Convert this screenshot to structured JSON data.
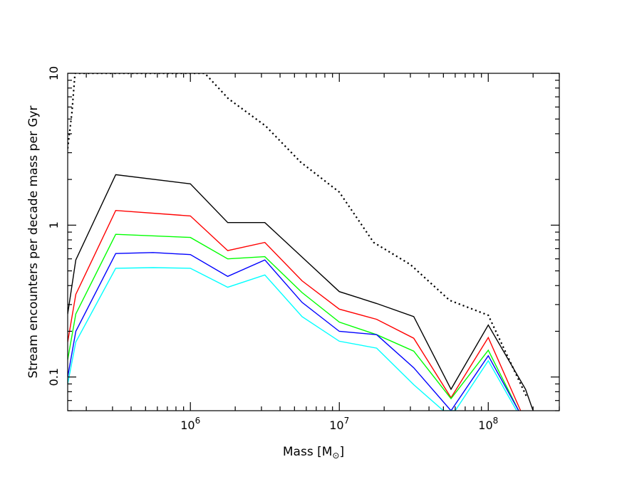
{
  "chart_data": {
    "type": "line",
    "xlabel": "Mass [M",
    "xlabel_sub": "⊙",
    "xlabel_close": "]",
    "ylabel": "Stream encounters per decade mass per Gyr",
    "x_scale": "log",
    "y_scale": "log",
    "xlim": [
      150000,
      300000000
    ],
    "ylim": [
      0.06,
      10
    ],
    "x_ticks": [
      {
        "value": 1000000,
        "base": "10",
        "exp": "6"
      },
      {
        "value": 10000000,
        "base": "10",
        "exp": "7"
      },
      {
        "value": 100000000,
        "base": "10",
        "exp": "8"
      }
    ],
    "y_ticks": [
      {
        "value": 0.1,
        "label": "0.1"
      },
      {
        "value": 1,
        "label": "1"
      },
      {
        "value": 10,
        "label": "10"
      }
    ],
    "grid": false,
    "legend": "none",
    "series": [
      {
        "color": "#000000",
        "style": "dotted",
        "x": [
          150000,
          160000,
          168000,
          1250000,
          1800000,
          3200000,
          5500000,
          10000000,
          17000000,
          30000000,
          55000000,
          100000000,
          180000000
        ],
        "y": [
          3.2,
          5.5,
          10,
          10,
          6.8,
          4.5,
          2.6,
          1.65,
          0.77,
          0.55,
          0.32,
          0.255,
          0.075
        ]
      },
      {
        "color": "#000000",
        "style": "solid",
        "x": [
          150000,
          170000,
          315000,
          1000000,
          1780000,
          3160000,
          10000000,
          17800000,
          31600000,
          56200000,
          100000000,
          178000000,
          200000000
        ],
        "y": [
          0.26,
          0.59,
          2.15,
          1.87,
          1.04,
          1.04,
          0.365,
          0.305,
          0.25,
          0.083,
          0.22,
          0.083,
          0.06
        ]
      },
      {
        "color": "#ff0000",
        "style": "solid",
        "x": [
          150000,
          170000,
          315000,
          1000000,
          1780000,
          3160000,
          5620000,
          10000000,
          17800000,
          31600000,
          56200000,
          100000000,
          165000000
        ],
        "y": [
          0.17,
          0.35,
          1.25,
          1.15,
          0.68,
          0.77,
          0.43,
          0.28,
          0.24,
          0.18,
          0.073,
          0.182,
          0.06
        ]
      },
      {
        "color": "#00ff00",
        "style": "solid",
        "x": [
          150000,
          170000,
          315000,
          1000000,
          1780000,
          3160000,
          5620000,
          10000000,
          17800000,
          31600000,
          56200000,
          100000000,
          160000000
        ],
        "y": [
          0.13,
          0.26,
          0.87,
          0.83,
          0.6,
          0.62,
          0.36,
          0.23,
          0.19,
          0.148,
          0.072,
          0.15,
          0.06
        ]
      },
      {
        "color": "#0000ff",
        "style": "solid",
        "x": [
          150000,
          170000,
          315000,
          562000,
          1000000,
          1780000,
          3160000,
          5620000,
          10000000,
          17800000,
          31600000,
          56200000,
          100000000,
          160000000
        ],
        "y": [
          0.1,
          0.2,
          0.65,
          0.66,
          0.64,
          0.46,
          0.59,
          0.31,
          0.2,
          0.19,
          0.115,
          0.06,
          0.138,
          0.06
        ]
      },
      {
        "color": "#00ffff",
        "style": "solid",
        "x": [
          150000,
          170000,
          315000,
          562000,
          1000000,
          1780000,
          3160000,
          5620000,
          10000000,
          17800000,
          31600000,
          50000000,
          60000000,
          100000000,
          155000000
        ],
        "y": [
          0.09,
          0.17,
          0.52,
          0.525,
          0.52,
          0.39,
          0.47,
          0.25,
          0.172,
          0.155,
          0.089,
          0.06,
          0.06,
          0.128,
          0.06
        ]
      }
    ]
  }
}
